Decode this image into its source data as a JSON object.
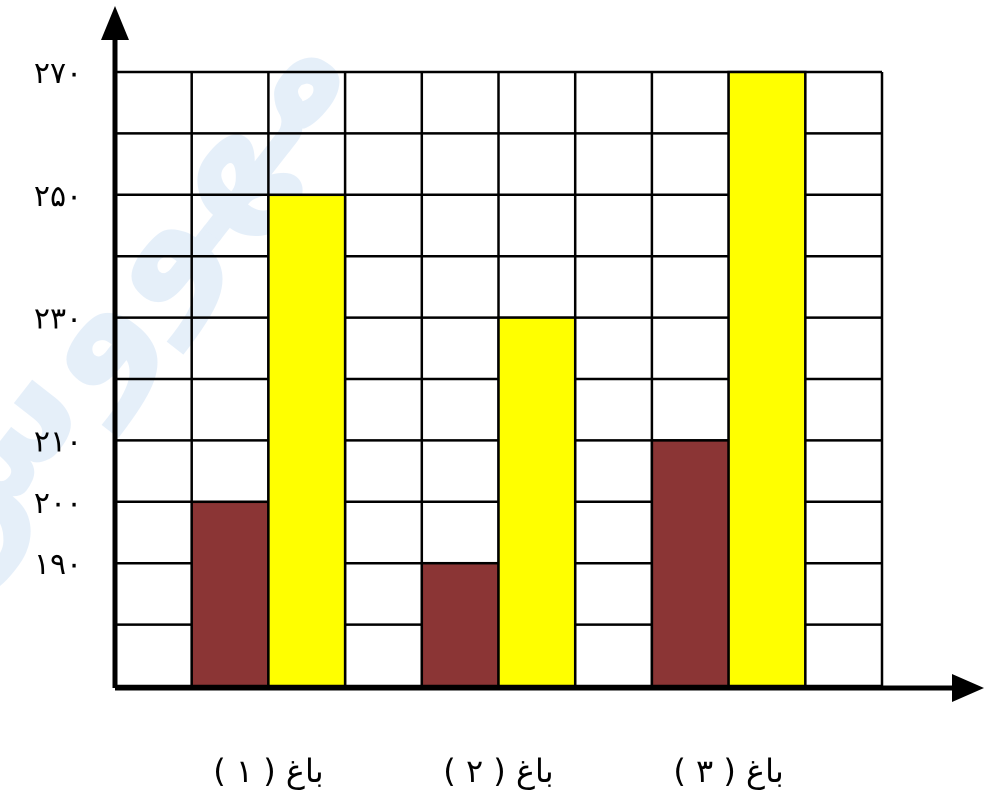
{
  "chart_data": {
    "type": "bar",
    "categories": [
      "باغ ( ۱ )",
      "باغ ( ۲ )",
      "باغ ( ۳ )"
    ],
    "series": [
      {
        "color": "#8B3535",
        "values": [
          200,
          190,
          210
        ]
      },
      {
        "color": "#FFFF00",
        "values": [
          250,
          230,
          270
        ]
      }
    ],
    "y_tick_values": [
      270,
      250,
      230,
      210,
      200,
      190
    ],
    "y_tick_labels": [
      "۲۷۰",
      "۲۵۰",
      "۲۳۰",
      "۲۱۰",
      "۲۰۰",
      "۱۹۰"
    ],
    "ylim": [
      170,
      270
    ],
    "grid": true,
    "watermark_text": "مهووس"
  }
}
